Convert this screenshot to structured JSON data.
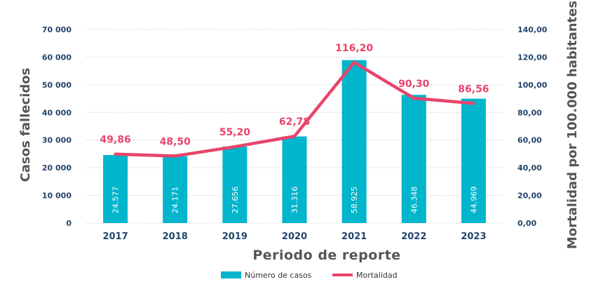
{
  "chart_data": {
    "type": "bar",
    "categories": [
      "2017",
      "2018",
      "2019",
      "2020",
      "2021",
      "2022",
      "2023"
    ],
    "series": [
      {
        "name": "Número de casos",
        "type": "bar",
        "axis": "left",
        "values": [
          24577,
          24171,
          27656,
          31316,
          58925,
          46348,
          44969
        ],
        "labels": [
          "24.577",
          "24.171",
          "27.656",
          "31.316",
          "58.925",
          "46.348",
          "44.969"
        ],
        "color": "#00b5cc"
      },
      {
        "name": "Mortalidad",
        "type": "line",
        "axis": "right",
        "values": [
          49.86,
          48.5,
          55.2,
          62.78,
          116.2,
          90.3,
          86.56
        ],
        "labels": [
          "49,86",
          "48,50",
          "55,20",
          "62,78",
          "116,20",
          "90,30",
          "86,56"
        ],
        "color": "#e8456b"
      }
    ],
    "xlabel": "Periodo de reporte",
    "ylabel_left": "Casos fallecidos",
    "ylabel_right": "Mortalidad por 100.000 habitantes",
    "ylim_left": [
      0,
      70000
    ],
    "ylim_right": [
      0,
      140
    ],
    "yticks_left": [
      "0",
      "10 000",
      "20 000",
      "30 000",
      "40 000",
      "50 000",
      "60 000",
      "70 000"
    ],
    "yticks_right": [
      "0,00",
      "20,00",
      "40,00",
      "60,00",
      "80,00",
      "100,00",
      "120,00",
      "140,00"
    ],
    "grid": true,
    "legend": "bottom-center"
  }
}
